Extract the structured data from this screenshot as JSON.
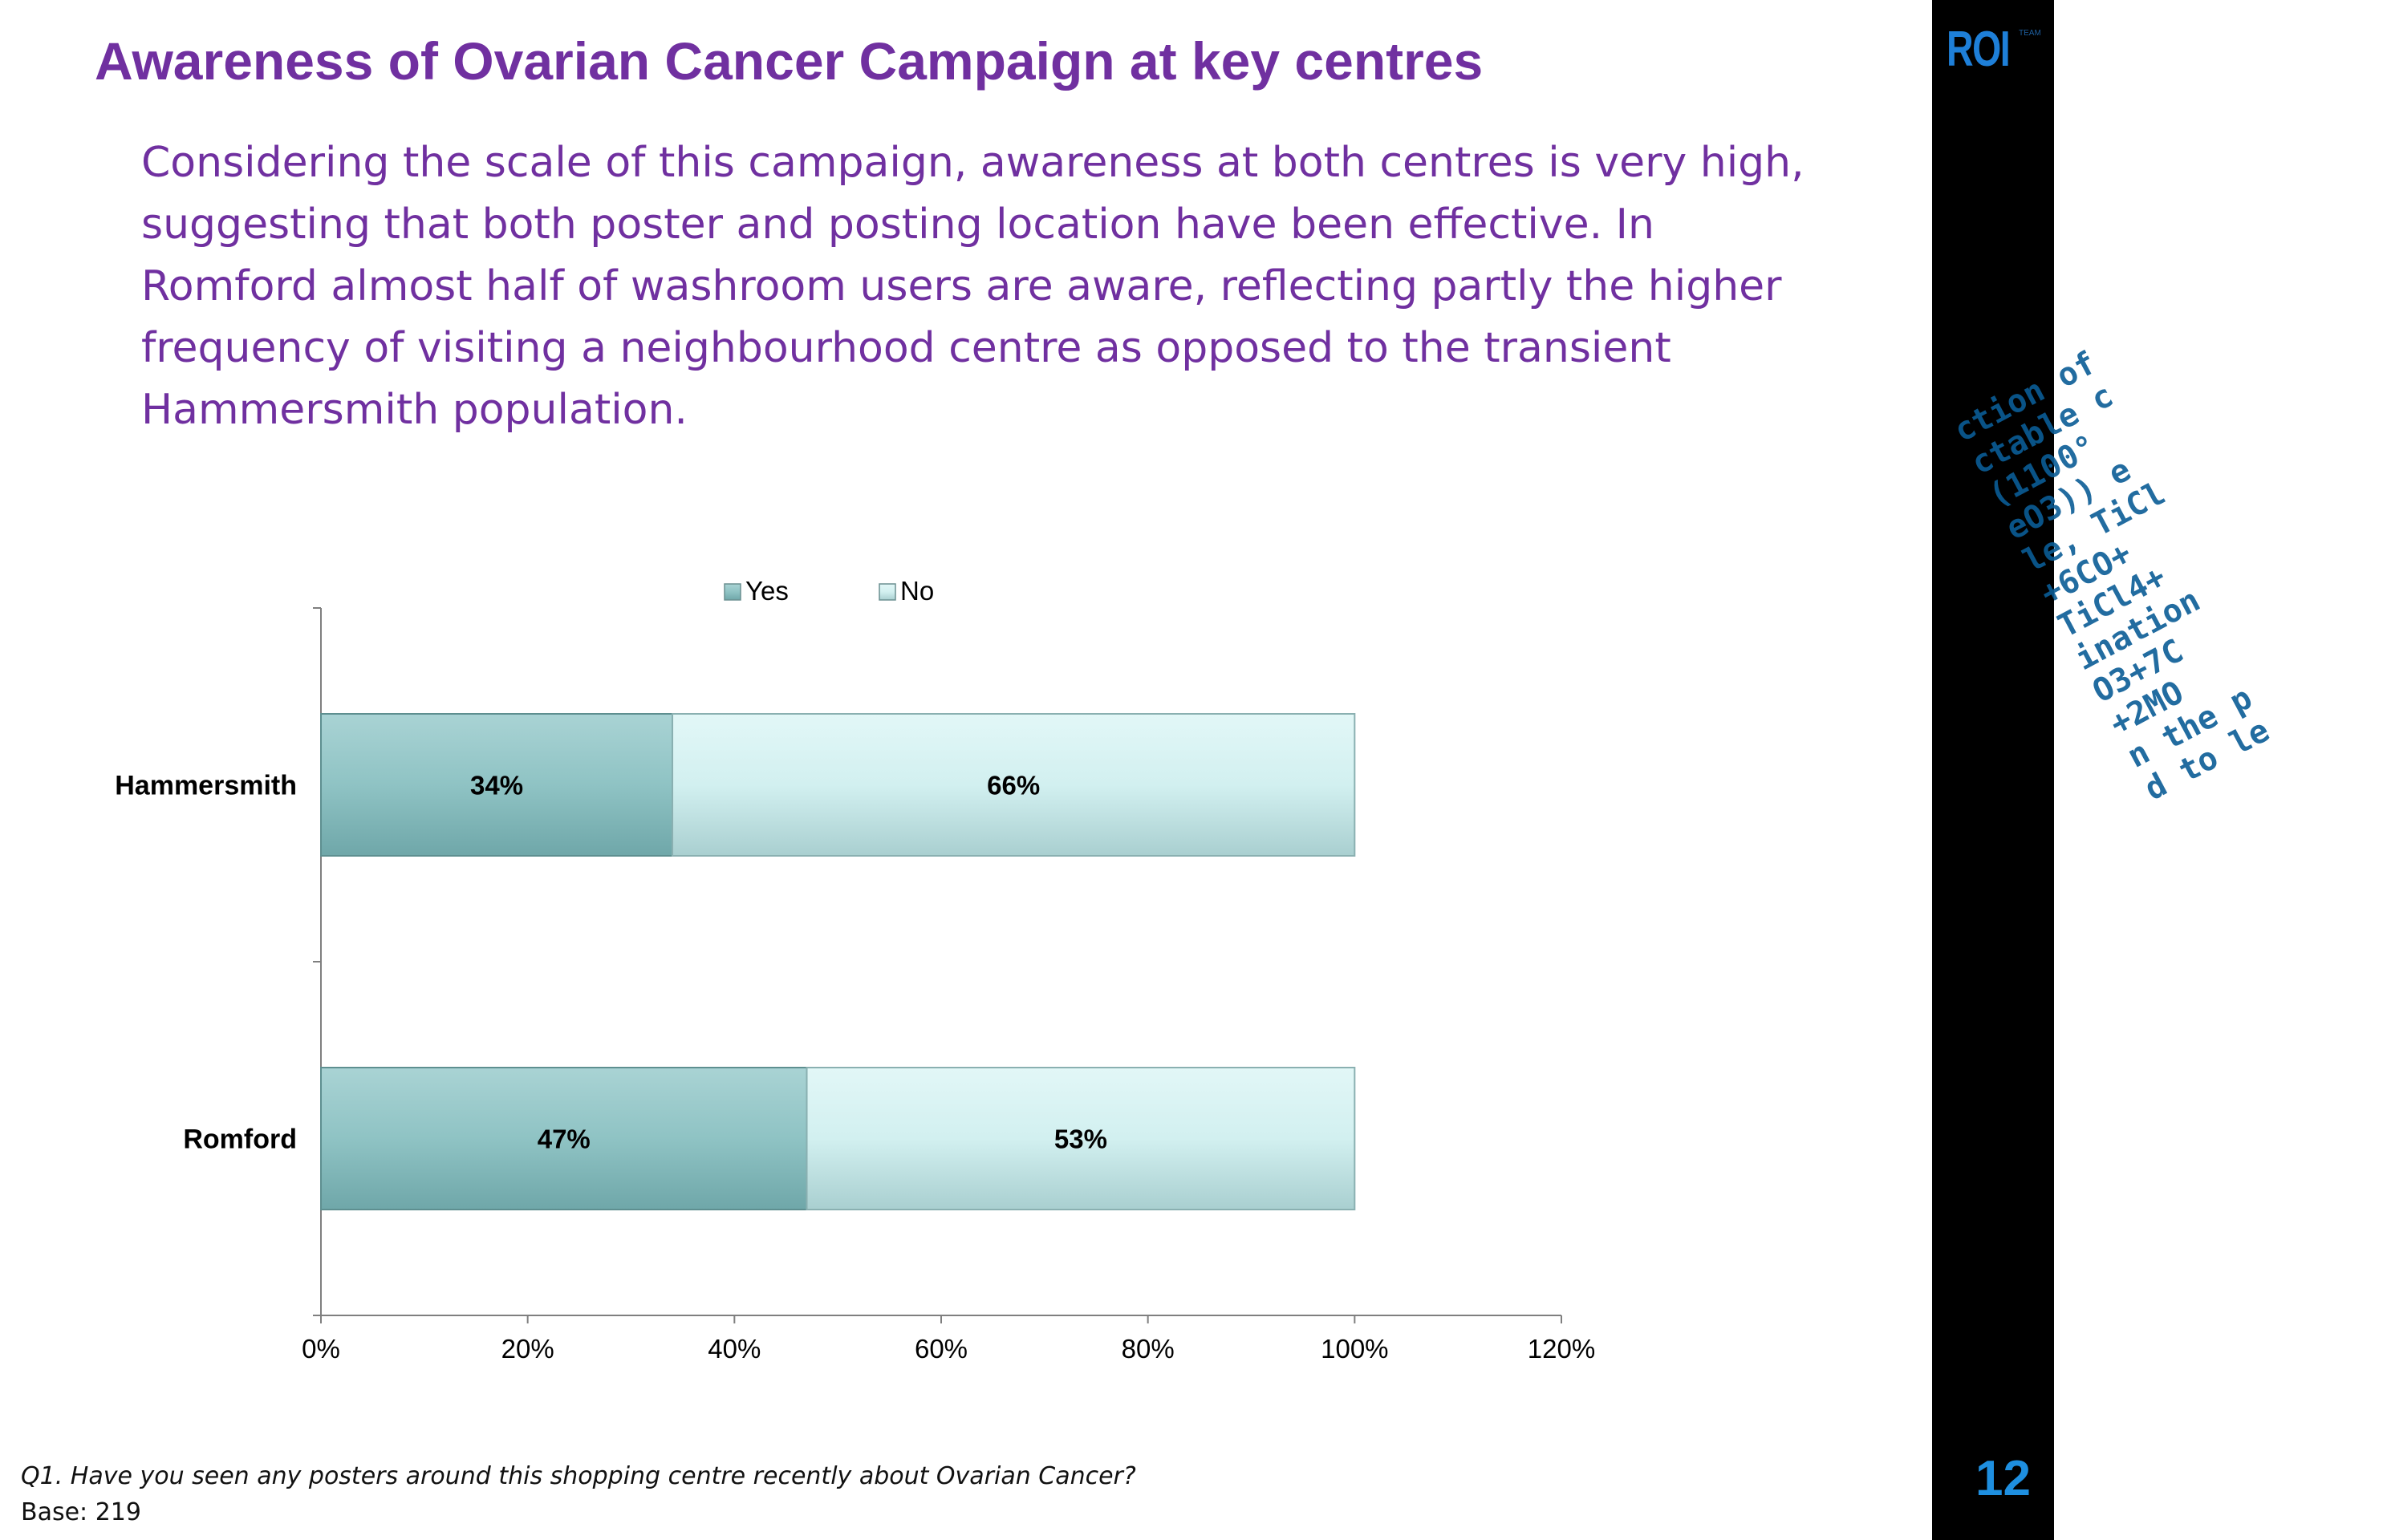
{
  "slide": {
    "title": "Awareness of Ovarian Cancer Campaign at key centres",
    "subtitle": "Considering the scale of this campaign, awareness at both centres is very high, suggesting that both poster and posting location have been effective. In Romford almost half of washroom users are aware, reflecting partly the higher frequency of visiting a neighbourhood centre as opposed to the transient Hammersmith population.",
    "footnote": "Q1. Have you seen any posters around this shopping centre recently about Ovarian Cancer?",
    "base": "Base: 219",
    "page_number": "12"
  },
  "sidebar": {
    "logo": "ROI",
    "logo_tm": "TEAM",
    "deco_text": "ction of\nctable c\n(1100°\neO3)) e\nle, TiCl\n+6CO+\nTiCl4+\nination\nO3+7C\n+2MO\nn the p\nd to le"
  },
  "colors": {
    "title": "#7030a0",
    "yes_fill": "#8fc3c4",
    "no_fill": "#d2f0f0",
    "sidebar_bg": "#000000",
    "accent_blue": "#1e8fe0"
  },
  "chart_data": {
    "type": "bar",
    "orientation": "horizontal",
    "stacked": true,
    "categories": [
      "Hammersmith",
      "Romford"
    ],
    "series": [
      {
        "name": "Yes",
        "values": [
          34,
          47
        ],
        "labels": [
          "34%",
          "47%"
        ]
      },
      {
        "name": "No",
        "values": [
          66,
          53
        ],
        "labels": [
          "66%",
          "53%"
        ]
      }
    ],
    "xlim": [
      0,
      120
    ],
    "xticks": [
      0,
      20,
      40,
      60,
      80,
      100,
      120
    ],
    "xtick_labels": [
      "0%",
      "20%",
      "40%",
      "60%",
      "80%",
      "100%",
      "120%"
    ],
    "legend": [
      "Yes",
      "No"
    ],
    "legend_position": "top-center",
    "grid": false
  }
}
